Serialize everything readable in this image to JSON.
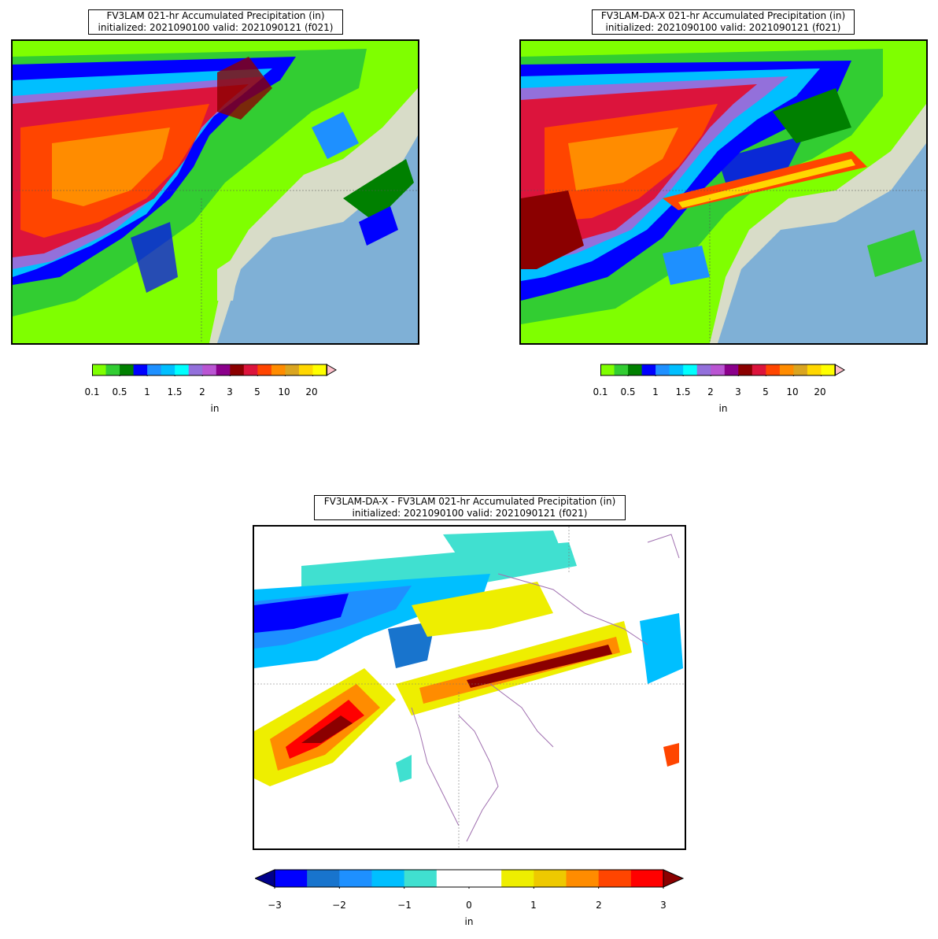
{
  "panels": {
    "left": {
      "title_line1": "FV3LAM 021-hr Accumulated Precipitation (in)",
      "title_line2": "initialized: 2021090100 valid: 2021090121 (f021)"
    },
    "right": {
      "title_line1": "FV3LAM-DA-X 021-hr Accumulated Precipitation (in)",
      "title_line2": "initialized: 2021090100 valid: 2021090121 (f021)"
    },
    "diff": {
      "title_line1": "FV3LAM-DA-X - FV3LAM 021-hr Accumulated Precipitation (in)",
      "title_line2": "initialized: 2021090100 valid: 2021090121 (f021)"
    }
  },
  "precip_colorbar": {
    "unit": "in",
    "tick_labels": [
      "0.1",
      "0.5",
      "1",
      "1.5",
      "2",
      "3",
      "5",
      "10",
      "20"
    ],
    "colors": [
      "#7fff00",
      "#32cd32",
      "#008000",
      "#0000ff",
      "#1e90ff",
      "#00bfff",
      "#00ffff",
      "#9370db",
      "#ba55d3",
      "#8b008b",
      "#8b0000",
      "#dc143c",
      "#ff4500",
      "#ff8c00",
      "#daa520",
      "#ffd700",
      "#ffff00"
    ],
    "extend_color": "#ffc0cb"
  },
  "diff_colorbar": {
    "unit": "in",
    "tick_labels": [
      "−3",
      "−2",
      "−1",
      "0",
      "1",
      "2",
      "3"
    ],
    "colors": [
      "#0000ff",
      "#1874cd",
      "#1e90ff",
      "#00bfff",
      "#40e0d0",
      "#ffffff",
      "#ffffff",
      "#eeee00",
      "#eec900",
      "#ff8c00",
      "#ff4500",
      "#ff0000"
    ],
    "under_color": "#00008b",
    "over_color": "#8b0000"
  },
  "map_colors": {
    "ocean": "#7fb0d6",
    "land": "#d8dcc8",
    "state_line": "#555555",
    "coast_diff": "#a070b0"
  }
}
